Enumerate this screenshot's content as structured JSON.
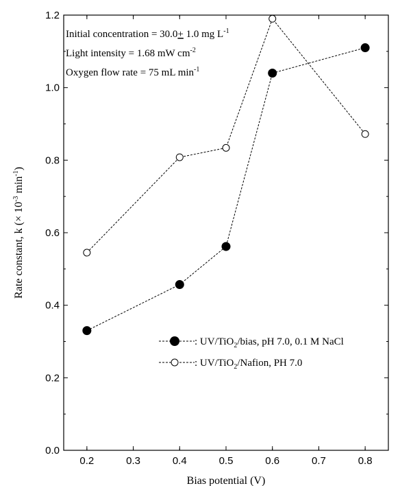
{
  "chart_data": {
    "type": "line",
    "xlabel": "Bias potential (V)",
    "ylabel": "Rate constant, k (× 10",
    "ylabel_sup1": "-3",
    "ylabel_mid": " min",
    "ylabel_sup2": "-1",
    "ylabel_end": ")",
    "xlim": [
      0.15,
      0.85
    ],
    "ylim": [
      0.0,
      1.2
    ],
    "x_ticks": [
      "0.2",
      "0.3",
      "0.4",
      "0.5",
      "0.6",
      "0.7",
      "0.8"
    ],
    "y_ticks": [
      "0.0",
      "0.2",
      "0.4",
      "0.6",
      "0.8",
      "1.0",
      "1.2"
    ],
    "grid": false,
    "legend_position": "lower-right",
    "annotations": {
      "line1_main": "Initial concentration = 30.0",
      "line1_pm": "+",
      "line1_rest": " 1.0 mg L",
      "line1_sup": "-1",
      "line2_main": "Light intensity = 1.68 mW cm",
      "line2_sup": "-2",
      "line3_main": "Oxygen flow rate = 75 mL min",
      "line3_sup": "-1"
    },
    "series": [
      {
        "name": "UV/TiO2/bias, pH 7.0, 0.1 M NaCl",
        "legend_prefix": "UV/TiO",
        "legend_sub": "2",
        "legend_suffix": "/bias, pH 7.0, 0.1 M NaCl",
        "marker": "filled-circle",
        "x": [
          0.2,
          0.4,
          0.5,
          0.6,
          0.8
        ],
        "y": [
          0.33,
          0.457,
          0.562,
          1.04,
          1.11
        ]
      },
      {
        "name": "UV/TiO2/Nafion, PH 7.0",
        "legend_prefix": "UV/TiO",
        "legend_sub": "2",
        "legend_suffix": "/Nafion, PH 7.0",
        "marker": "open-circle",
        "x": [
          0.2,
          0.4,
          0.5,
          0.6,
          0.8
        ],
        "y": [
          0.545,
          0.808,
          0.834,
          1.19,
          0.872
        ]
      }
    ]
  }
}
